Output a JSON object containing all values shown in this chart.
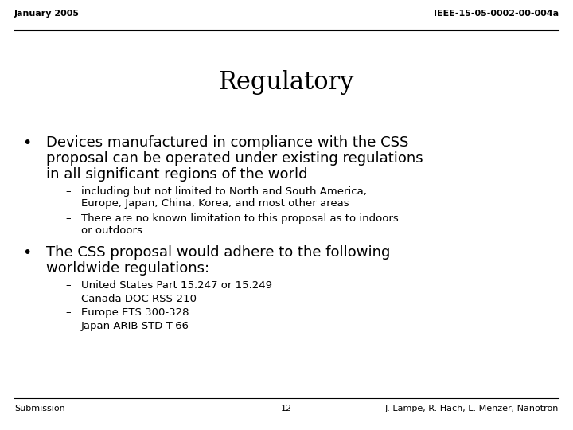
{
  "bg_color": "#ffffff",
  "top_left_text": "January 2005",
  "top_right_text": "IEEE-15-05-0002-00-004a",
  "title": "Regulatory",
  "bullet1_line1": "Devices manufactured in compliance with the CSS",
  "bullet1_line2": "proposal can be operated under existing regulations",
  "bullet1_line3": "in all significant regions of the world",
  "sub1_line1": "including but not limited to North and South America,",
  "sub1_line2": "Europe, Japan, China, Korea, and most other areas",
  "sub2_line1": "There are no known limitation to this proposal as to indoors",
  "sub2_line2": "or outdoors",
  "bullet2_line1": "The CSS proposal would adhere to the following",
  "bullet2_line2": "worldwide regulations:",
  "sub3": "United States Part 15.247 or 15.249",
  "sub4": "Canada DOC RSS-210",
  "sub5": "Europe ETS 300-328",
  "sub6": "Japan ARIB STD T-66",
  "footer_left": "Submission",
  "footer_center": "12",
  "footer_right": "J. Lampe, R. Hach, L. Menzer, Nanotron",
  "header_fontsize": 8,
  "title_fontsize": 22,
  "bullet_fontsize": 13,
  "sub_fontsize": 9.5,
  "footer_fontsize": 8
}
